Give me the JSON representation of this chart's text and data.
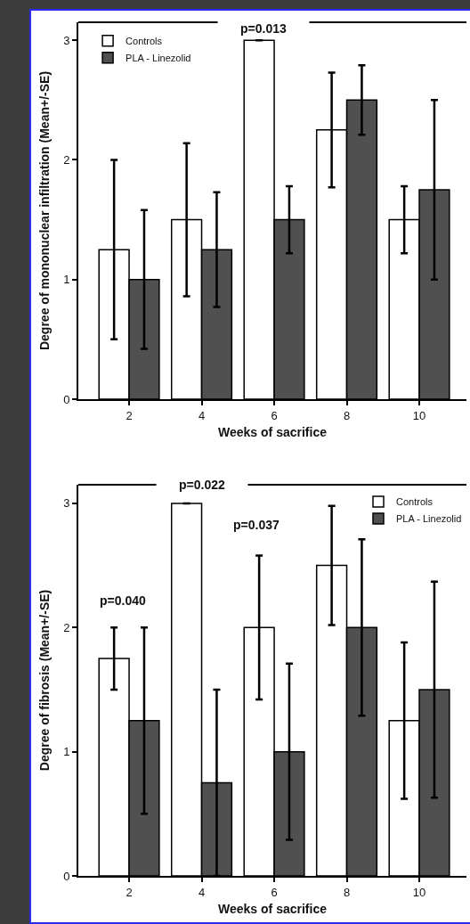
{
  "chart_data": [
    {
      "type": "bar",
      "xlabel": "Weeks of sacrifice",
      "ylabel": "Degree of mononuclear infiltration (Mean+/-SE)",
      "categories": [
        "2",
        "4",
        "6",
        "8",
        "10"
      ],
      "series": [
        {
          "name": "Controls",
          "color": "#ffffff",
          "values": [
            1.25,
            1.5,
            3,
            2.25,
            1.5
          ],
          "errors": [
            0.75,
            0.64,
            0,
            0.48,
            0.28
          ]
        },
        {
          "name": "PLA - Linezolid",
          "color": "#505050",
          "values": [
            1,
            1.25,
            1.5,
            2.5,
            1.75
          ],
          "errors": [
            0.58,
            0.48,
            0.28,
            0.29,
            0.75
          ]
        }
      ],
      "ylim": [
        0,
        3.15
      ],
      "yticks": [
        0,
        1,
        2,
        3
      ],
      "legend": "top left",
      "annotations": [
        "p=0.013"
      ]
    },
    {
      "type": "bar",
      "xlabel": "Weeks of sacrifice",
      "ylabel": "Degree of fibrosis (Mean+/-SE)",
      "categories": [
        "2",
        "4",
        "6",
        "8",
        "10"
      ],
      "series": [
        {
          "name": "Controls",
          "color": "#ffffff",
          "values": [
            1.75,
            3,
            2,
            2.5,
            1.25
          ],
          "errors": [
            0.25,
            0,
            0.58,
            0.48,
            0.63
          ]
        },
        {
          "name": "PLA - Linezolid",
          "color": "#505050",
          "values": [
            1.25,
            0.75,
            1,
            2,
            1.5
          ],
          "errors": [
            0.75,
            0.75,
            0.71,
            0.71,
            0.87
          ]
        }
      ],
      "ylim": [
        0,
        3.15
      ],
      "yticks": [
        0,
        1,
        2,
        3
      ],
      "legend": "top right",
      "annotations": [
        "p=0.022",
        "p=0.037",
        "p=0.040"
      ]
    }
  ]
}
